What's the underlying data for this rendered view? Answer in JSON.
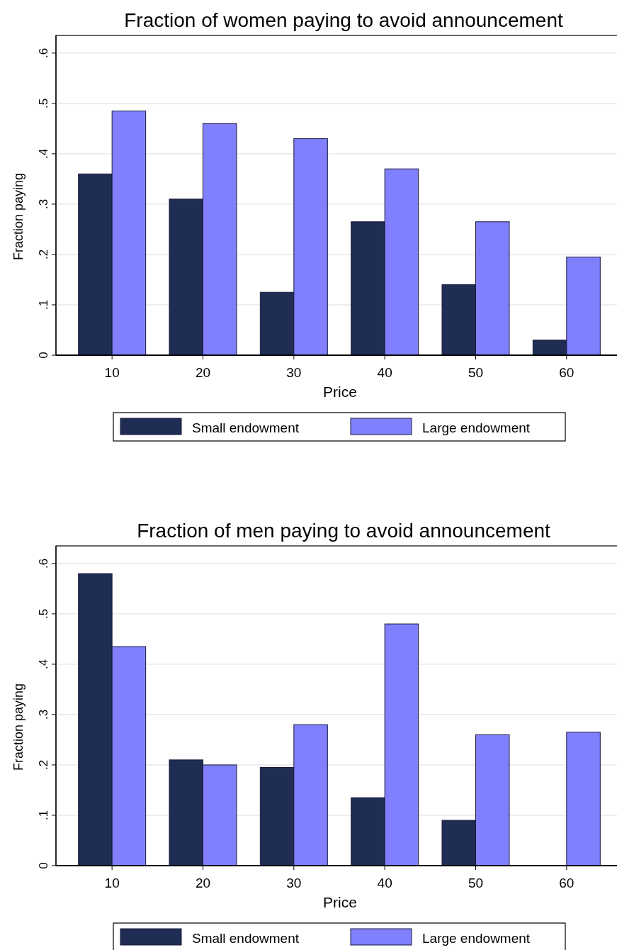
{
  "chart_data": [
    {
      "type": "bar",
      "title": "Fraction of women paying to avoid announcement",
      "xlabel": "Price",
      "ylabel": "Fraction paying",
      "categories": [
        "10",
        "20",
        "30",
        "40",
        "50",
        "60"
      ],
      "series": [
        {
          "name": "Small endowment",
          "color": "#1f2d54",
          "values": [
            0.36,
            0.31,
            0.125,
            0.265,
            0.14,
            0.03
          ]
        },
        {
          "name": "Large endowment",
          "color": "#8080ff",
          "values": [
            0.485,
            0.46,
            0.43,
            0.37,
            0.265,
            0.195
          ]
        }
      ],
      "ylim": [
        0,
        0.635
      ],
      "yticks": [
        {
          "value": 0,
          "label": "0"
        },
        {
          "value": 0.1,
          "label": ".1"
        },
        {
          "value": 0.2,
          "label": ".2"
        },
        {
          "value": 0.3,
          "label": ".3"
        },
        {
          "value": 0.4,
          "label": ".4"
        },
        {
          "value": 0.5,
          "label": ".5"
        },
        {
          "value": 0.6,
          "label": ".6"
        }
      ],
      "grid": "y",
      "legend": "bottom"
    },
    {
      "type": "bar",
      "title": "Fraction of men paying to avoid announcement",
      "xlabel": "Price",
      "ylabel": "Fraction paying",
      "categories": [
        "10",
        "20",
        "30",
        "40",
        "50",
        "60"
      ],
      "series": [
        {
          "name": "Small endowment",
          "color": "#1f2d54",
          "values": [
            0.58,
            0.21,
            0.195,
            0.135,
            0.09,
            0
          ]
        },
        {
          "name": "Large endowment",
          "color": "#8080ff",
          "values": [
            0.435,
            0.2,
            0.28,
            0.48,
            0.26,
            0.265
          ]
        }
      ],
      "ylim": [
        0,
        0.635
      ],
      "yticks": [
        {
          "value": 0,
          "label": "0"
        },
        {
          "value": 0.1,
          "label": ".1"
        },
        {
          "value": 0.2,
          "label": ".2"
        },
        {
          "value": 0.3,
          "label": ".3"
        },
        {
          "value": 0.4,
          "label": ".4"
        },
        {
          "value": 0.5,
          "label": ".5"
        },
        {
          "value": 0.6,
          "label": ".6"
        }
      ],
      "grid": "y",
      "legend": "bottom"
    }
  ]
}
